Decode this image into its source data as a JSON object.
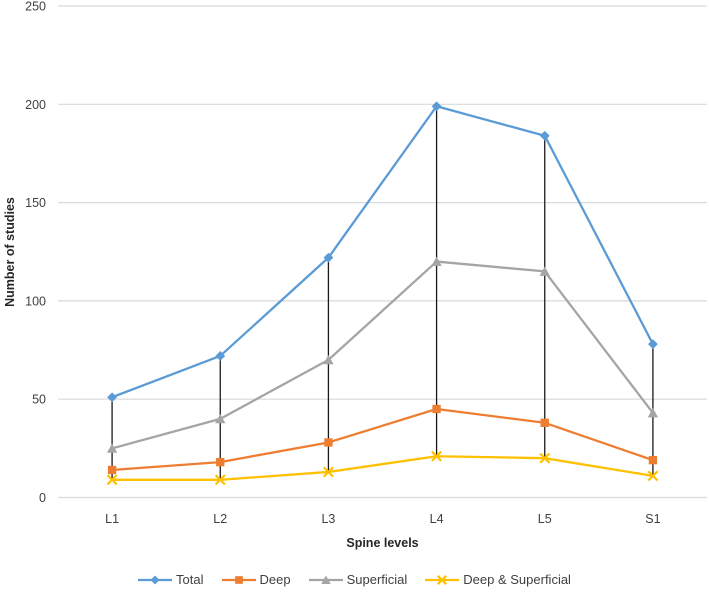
{
  "chart_data": {
    "type": "line",
    "title": "",
    "xlabel": "Spine levels",
    "ylabel": "Number of studies",
    "categories": [
      "L1",
      "L2",
      "L3",
      "L4",
      "L5",
      "S1"
    ],
    "ylim": [
      0,
      250
    ],
    "yticks": [
      0,
      50,
      100,
      150,
      200,
      250
    ],
    "grid": true,
    "legend_position": "bottom",
    "high_low_lines": true,
    "colors": {
      "grid": "#d9d9d9",
      "axis_text": "#404040",
      "high_low": "#1a1a1a",
      "background": "#ffffff"
    },
    "series": [
      {
        "name": "Total",
        "marker": "diamond",
        "color": "#5B9BD5",
        "values": [
          51,
          72,
          122,
          199,
          184,
          78
        ]
      },
      {
        "name": "Deep",
        "marker": "square",
        "color": "#ED7D31",
        "values": [
          14,
          18,
          28,
          45,
          38,
          19
        ]
      },
      {
        "name": "Superficial",
        "marker": "triangle",
        "color": "#A5A5A5",
        "values": [
          25,
          40,
          70,
          120,
          115,
          43
        ]
      },
      {
        "name": "Deep & Superficial",
        "marker": "x",
        "color": "#FFC000",
        "values": [
          9,
          9,
          13,
          21,
          20,
          11
        ]
      }
    ]
  }
}
